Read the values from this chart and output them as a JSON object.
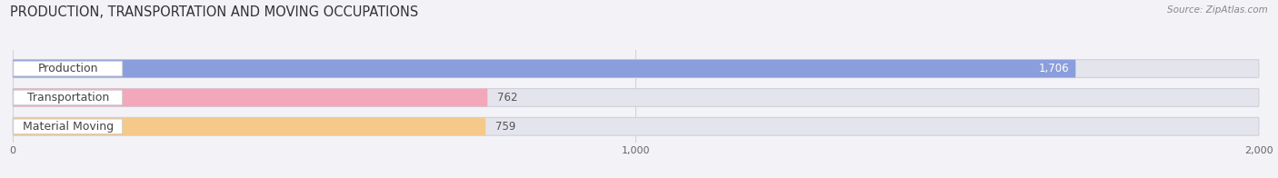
{
  "title": "PRODUCTION, TRANSPORTATION AND MOVING OCCUPATIONS",
  "source_text": "Source: ZipAtlas.com",
  "categories": [
    "Production",
    "Transportation",
    "Material Moving"
  ],
  "values": [
    1706,
    762,
    759
  ],
  "bar_colors": [
    "#8b9edc",
    "#f2a8ba",
    "#f5c98a"
  ],
  "label_values": [
    "1,706",
    "762",
    "759"
  ],
  "xlim_max": 2000,
  "xticks": [
    0,
    1000,
    2000
  ],
  "xtick_labels": [
    "0",
    "1,000",
    "2,000"
  ],
  "background_color": "#f2f2f7",
  "bar_bg_color": "#e4e4ed",
  "title_fontsize": 10.5,
  "label_fontsize": 9,
  "value_fontsize": 8.5,
  "source_fontsize": 7.5
}
